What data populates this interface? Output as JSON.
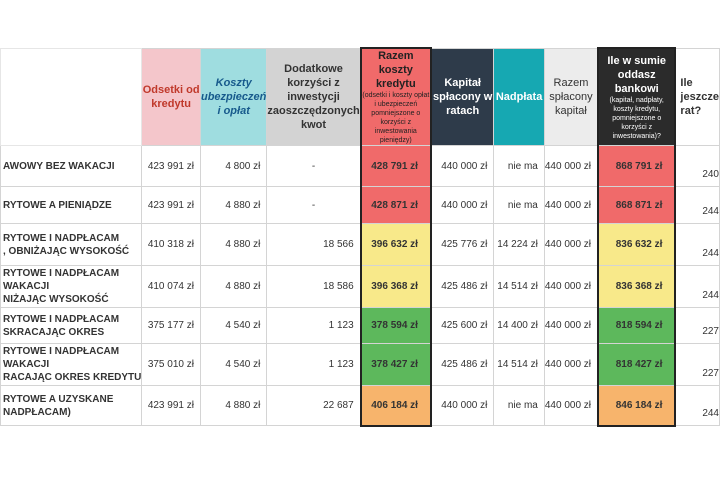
{
  "colors": {
    "red": "#f06a6a",
    "yellow": "#f8e98a",
    "green": "#5db85c",
    "orange": "#f7b46c",
    "header_pink": "#f4c6cb",
    "header_cyan": "#9fdde0",
    "header_grey": "#d3d3d3",
    "header_dark": "#2e3b4a",
    "header_teal": "#16a8b2",
    "header_light": "#ececec"
  },
  "headers": {
    "h1": "Odsetki od kredytu",
    "h2": "Koszty ubezpieczeń i opłat",
    "h3": "Dodatkowe korzyści z inwestycji zaoszczędzonych kwot",
    "h4_main": "Razem koszty kredytu",
    "h4_sub": "(odsetki i koszty opłat i ubezpieczeń pomniejszone o korzyści z inwestowania pieniędzy)",
    "h5": "Kapitał spłacony w ratach",
    "h6": "Nadpłata",
    "h7": "Razem spłacony kapitał",
    "h8_main": "Ile w sumie oddasz bankowi",
    "h8_sub": "(kapitał, nadpłaty, koszty kredytu, pomniejszone o korzyści z inwestowania)?",
    "h9": "Ile jeszcze rat?"
  },
  "rows": [
    {
      "label": [
        "AWOWY BEZ WAKACJI"
      ],
      "odsetki": "423 991 zł",
      "koszty": "4 800 zł",
      "korzysci": "-",
      "razem": "428 791 zł",
      "razem_color": "red",
      "kapital": "440 000 zł",
      "nadplata": "nie ma",
      "splacony": "440 000 zł",
      "suma": "868 791 zł",
      "suma_color": "red",
      "raty": "240"
    },
    {
      "label": [
        "RYTOWE A PIENIĄDZE"
      ],
      "odsetki": "423 991 zł",
      "koszty": "4 880 zł",
      "korzysci": "-",
      "razem": "428 871 zł",
      "razem_color": "red",
      "kapital": "440 000 zł",
      "nadplata": "nie ma",
      "splacony": "440 000 zł",
      "suma": "868 871 zł",
      "suma_color": "red",
      "raty": "244"
    },
    {
      "label": [
        "RYTOWE I NADPŁACAM",
        ", OBNIŻAJĄC WYSOKOŚĆ"
      ],
      "odsetki": "410 318 zł",
      "koszty": "4 880 zł",
      "korzysci": "18 566",
      "razem": "396 632 zł",
      "razem_color": "yellow",
      "kapital": "425 776 zł",
      "nadplata": "14 224 zł",
      "splacony": "440 000 zł",
      "suma": "836 632 zł",
      "suma_color": "yellow",
      "raty": "244"
    },
    {
      "label": [
        "RYTOWE I NADPŁACAM",
        "WAKACJI",
        "NIŻAJĄC WYSOKOŚĆ"
      ],
      "odsetki": "410 074 zł",
      "koszty": "4 880 zł",
      "korzysci": "18 586",
      "razem": "396 368 zł",
      "razem_color": "yellow",
      "kapital": "425 486 zł",
      "nadplata": "14 514 zł",
      "splacony": "440 000 zł",
      "suma": "836 368 zł",
      "suma_color": "yellow",
      "raty": "244"
    },
    {
      "label": [
        "RYTOWE I NADPŁACAM",
        "SKRACAJĄC OKRES"
      ],
      "odsetki": "375 177 zł",
      "koszty": "4 540 zł",
      "korzysci": "1 123",
      "razem": "378 594 zł",
      "razem_color": "green",
      "kapital": "425 600 zł",
      "nadplata": "14 400 zł",
      "splacony": "440 000 zł",
      "suma": "818 594 zł",
      "suma_color": "green",
      "raty": "227"
    },
    {
      "label": [
        "RYTOWE I NADPŁACAM",
        "WAKACJI",
        "RACAJĄC OKRES KREDYTU"
      ],
      "odsetki": "375 010 zł",
      "koszty": "4 540 zł",
      "korzysci": "1 123",
      "razem": "378 427 zł",
      "razem_color": "green",
      "kapital": "425 486 zł",
      "nadplata": "14 514 zł",
      "splacony": "440 000 zł",
      "suma": "818 427 zł",
      "suma_color": "green",
      "raty": "227"
    },
    {
      "label": [
        "RYTOWE A UZYSKANE",
        "NADPŁACAM)"
      ],
      "odsetki": "423 991 zł",
      "koszty": "4 880 zł",
      "korzysci": "22 687",
      "razem": "406 184 zł",
      "razem_color": "orange",
      "kapital": "440 000 zł",
      "nadplata": "nie ma",
      "splacony": "440 000 zł",
      "suma": "846 184 zł",
      "suma_color": "orange",
      "raty": "244"
    }
  ]
}
